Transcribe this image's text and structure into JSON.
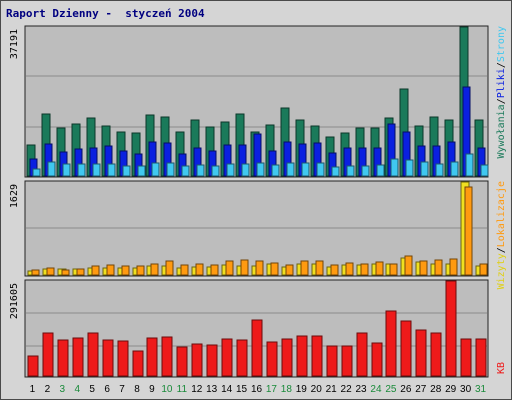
{
  "title": "Raport Dzienny -  styczeń 2004",
  "colors": {
    "wywolania": "#1a7a5a",
    "pliki": "#0a20e0",
    "strony": "#40c8f0",
    "wizyty": "#f0e020",
    "lokalizacje": "#ff9a10",
    "kb": "#ee1a1a",
    "weekend_label": "#1a8a3a",
    "weekday_label": "#000000"
  },
  "legend": {
    "top": [
      {
        "text": "Wywołania",
        "color": "#1a7a5a"
      },
      {
        "text": "/",
        "color": "#000000"
      },
      {
        "text": "Pliki",
        "color": "#0a20e0"
      },
      {
        "text": "/",
        "color": "#000000"
      },
      {
        "text": "Strony",
        "color": "#40c8f0"
      }
    ],
    "middle": [
      {
        "text": "Wizyty",
        "color": "#e0d010"
      },
      {
        "text": "/",
        "color": "#000000"
      },
      {
        "text": "Lokalizacje",
        "color": "#ff9a10"
      }
    ],
    "bottom": [
      {
        "text": "KB",
        "color": "#ee1a1a"
      }
    ]
  },
  "chart_data": [
    {
      "type": "bar",
      "panel": "top",
      "ymax_label": "37191",
      "ylim": [
        0,
        37191
      ],
      "categories": [
        "1",
        "2",
        "3",
        "4",
        "5",
        "6",
        "7",
        "8",
        "9",
        "10",
        "11",
        "12",
        "13",
        "14",
        "15",
        "16",
        "17",
        "18",
        "19",
        "20",
        "21",
        "22",
        "23",
        "24",
        "25",
        "26",
        "27",
        "28",
        "29",
        "30",
        "31"
      ],
      "series": [
        {
          "name": "Wywołania",
          "values": [
            7700,
            15600,
            12100,
            13000,
            14500,
            12600,
            11100,
            10700,
            15200,
            14700,
            11000,
            14100,
            12200,
            13500,
            15400,
            11000,
            12800,
            17000,
            13900,
            12600,
            9800,
            10800,
            11900,
            11900,
            14400,
            21800,
            12400,
            14700,
            14000,
            37191,
            13900
          ]
        },
        {
          "name": "Pliki",
          "values": [
            4200,
            8000,
            6100,
            6800,
            7000,
            7600,
            6200,
            5500,
            8400,
            8200,
            5500,
            7000,
            6300,
            7800,
            7800,
            10500,
            6300,
            8600,
            8000,
            8200,
            5700,
            6900,
            6900,
            7100,
            13000,
            11100,
            7600,
            7500,
            8500,
            22300,
            6900
          ]
        },
        {
          "name": "Strony",
          "values": [
            1700,
            3400,
            2900,
            3000,
            3100,
            2900,
            2400,
            2400,
            3300,
            3300,
            2600,
            2700,
            2500,
            3000,
            3100,
            3200,
            2800,
            3200,
            3300,
            3300,
            2300,
            2600,
            2600,
            2800,
            4300,
            3900,
            3600,
            3100,
            3600,
            5400,
            2800
          ]
        }
      ]
    },
    {
      "type": "bar",
      "panel": "middle",
      "ymax_label": "1629",
      "ylim": [
        0,
        1629
      ],
      "categories": [
        "1",
        "2",
        "3",
        "4",
        "5",
        "6",
        "7",
        "8",
        "9",
        "10",
        "11",
        "12",
        "13",
        "14",
        "15",
        "16",
        "17",
        "18",
        "19",
        "20",
        "21",
        "22",
        "23",
        "24",
        "25",
        "26",
        "27",
        "28",
        "29",
        "30",
        "31"
      ],
      "series": [
        {
          "name": "Wizyty",
          "values": [
            75,
            100,
            105,
            100,
            115,
            130,
            120,
            125,
            150,
            155,
            125,
            145,
            135,
            170,
            160,
            165,
            190,
            140,
            185,
            185,
            140,
            180,
            170,
            190,
            190,
            305,
            220,
            200,
            190,
            1629,
            160
          ]
        },
        {
          "name": "Lokalizacje",
          "values": [
            95,
            125,
            85,
            110,
            165,
            175,
            160,
            150,
            185,
            240,
            170,
            190,
            180,
            240,
            255,
            245,
            215,
            175,
            240,
            240,
            175,
            210,
            185,
            230,
            200,
            335,
            245,
            270,
            275,
            1540,
            200
          ]
        }
      ]
    },
    {
      "type": "bar",
      "panel": "bottom",
      "ymax_label": "291605",
      "ylim": [
        0,
        291605
      ],
      "categories": [
        "1",
        "2",
        "3",
        "4",
        "5",
        "6",
        "7",
        "8",
        "9",
        "10",
        "11",
        "12",
        "13",
        "14",
        "15",
        "16",
        "17",
        "18",
        "19",
        "20",
        "21",
        "22",
        "23",
        "24",
        "25",
        "26",
        "27",
        "28",
        "29",
        "30",
        "31"
      ],
      "series": [
        {
          "name": "KB",
          "values": [
            62000,
            131000,
            112000,
            117000,
            133000,
            110000,
            107000,
            77000,
            118000,
            120000,
            90000,
            99000,
            95000,
            113000,
            110000,
            171000,
            103000,
            114000,
            124000,
            124000,
            92000,
            93000,
            131000,
            101000,
            198000,
            168000,
            140000,
            131000,
            291605,
            113000,
            113000
          ]
        }
      ]
    }
  ],
  "x_labels": [
    {
      "text": "1",
      "weekend": false
    },
    {
      "text": "2",
      "weekend": false
    },
    {
      "text": "3",
      "weekend": true
    },
    {
      "text": "4",
      "weekend": true
    },
    {
      "text": "5",
      "weekend": false
    },
    {
      "text": "6",
      "weekend": false
    },
    {
      "text": "7",
      "weekend": false
    },
    {
      "text": "8",
      "weekend": false
    },
    {
      "text": "9",
      "weekend": false
    },
    {
      "text": "10",
      "weekend": true
    },
    {
      "text": "11",
      "weekend": true
    },
    {
      "text": "12",
      "weekend": false
    },
    {
      "text": "13",
      "weekend": false
    },
    {
      "text": "14",
      "weekend": false
    },
    {
      "text": "15",
      "weekend": false
    },
    {
      "text": "16",
      "weekend": false
    },
    {
      "text": "17",
      "weekend": true
    },
    {
      "text": "18",
      "weekend": true
    },
    {
      "text": "19",
      "weekend": false
    },
    {
      "text": "20",
      "weekend": false
    },
    {
      "text": "21",
      "weekend": false
    },
    {
      "text": "22",
      "weekend": false
    },
    {
      "text": "23",
      "weekend": false
    },
    {
      "text": "24",
      "weekend": true
    },
    {
      "text": "25",
      "weekend": true
    },
    {
      "text": "26",
      "weekend": false
    },
    {
      "text": "27",
      "weekend": false
    },
    {
      "text": "28",
      "weekend": false
    },
    {
      "text": "29",
      "weekend": false
    },
    {
      "text": "30",
      "weekend": false
    },
    {
      "text": "31",
      "weekend": true
    }
  ]
}
